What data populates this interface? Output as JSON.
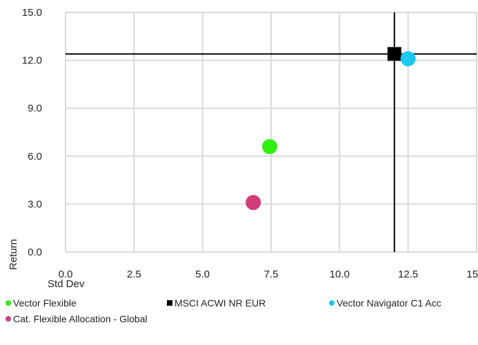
{
  "chart_data": {
    "type": "scatter",
    "title": "",
    "xlabel": "Std Dev",
    "ylabel": "Return",
    "xlim": [
      0,
      15
    ],
    "ylim": [
      0,
      15
    ],
    "x_ticks": [
      "0.0",
      "2.5",
      "5.0",
      "7.5",
      "10.0",
      "12.5",
      "15.0"
    ],
    "y_ticks": [
      "0.0",
      "3.0",
      "6.0",
      "9.0",
      "12.0",
      "15.0"
    ],
    "grid": true,
    "legend_position": "bottom",
    "benchmark_crosshair": {
      "x": 12.0,
      "y": 12.4,
      "color": "#000000"
    },
    "series": [
      {
        "name": "Vector Flexible",
        "x": 7.45,
        "y": 6.6,
        "color": "#33ee11",
        "marker": "circle"
      },
      {
        "name": "MSCI ACWI NR EUR",
        "x": 12.0,
        "y": 12.4,
        "color": "#000000",
        "marker": "square"
      },
      {
        "name": "Vector Navigator C1 Acc",
        "x": 12.5,
        "y": 12.1,
        "color": "#1ec8f0",
        "marker": "circle"
      },
      {
        "name": "Cat. Flexible Allocation - Global",
        "x": 6.85,
        "y": 3.1,
        "color": "#d23c78",
        "marker": "circle"
      }
    ]
  }
}
